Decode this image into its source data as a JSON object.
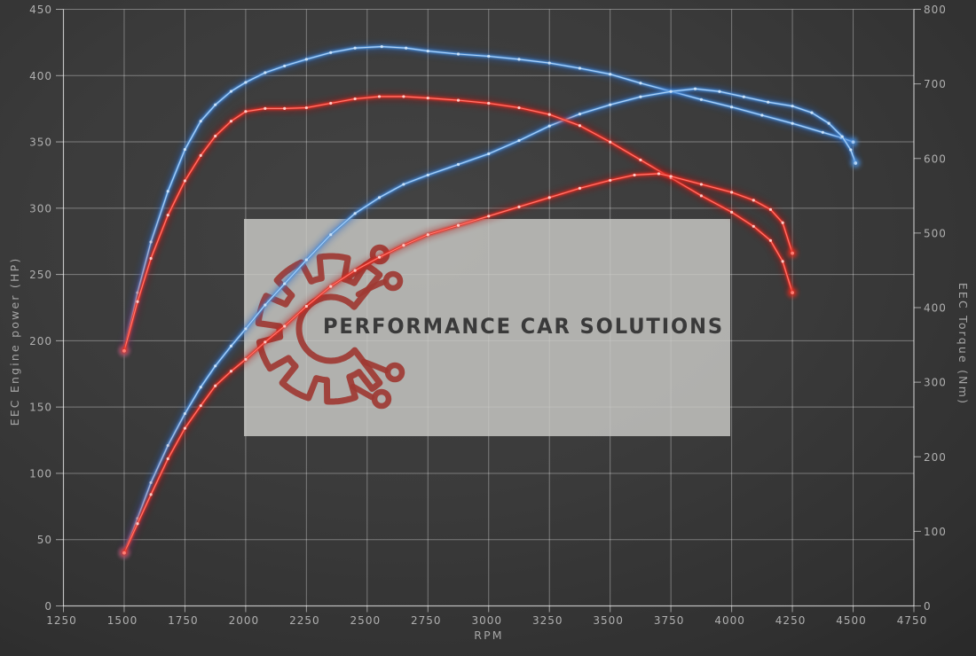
{
  "watermark": {
    "text": "PERFORMANCE CAR SOLUTIONS"
  },
  "colors": {
    "background_center": "#434343",
    "background_edge": "#292929",
    "grid": "rgba(255,255,255,0.34)",
    "axis": "rgba(255,255,255,0.55)",
    "tick_text": "#b0b0b0",
    "watermark_box": "rgba(202,202,199,0.82)",
    "watermark_text": "#3a3a3a",
    "logo_red": "#9e3a33",
    "blue": {
      "glow": "#1f5ec2",
      "mid": "#4e92dc",
      "core": "#b5d6f5",
      "dot": "#cfe6fb"
    },
    "red": {
      "glow": "#a80f0a",
      "mid": "#e62e24",
      "core": "#ff8177",
      "dot": "#ffd4cf"
    }
  },
  "chart_data": {
    "type": "line",
    "title": "",
    "xlabel": "RPM",
    "ylabel_left": "EEC Engine power (HP)",
    "ylabel_right": "EEC Torque (Nm)",
    "grid": true,
    "legend": "none",
    "x_range": [
      1250,
      4750
    ],
    "y_left_range": [
      0,
      450
    ],
    "y_right_range": [
      0,
      800
    ],
    "x_ticks": [
      1250,
      1500,
      1750,
      2000,
      2250,
      2500,
      2750,
      3000,
      3250,
      3500,
      3750,
      4000,
      4250,
      4500,
      4750
    ],
    "y_left_ticks": [
      0,
      50,
      100,
      150,
      200,
      250,
      300,
      350,
      400,
      450
    ],
    "y_right_ticks": [
      0,
      100,
      200,
      300,
      400,
      500,
      600,
      700,
      800
    ],
    "series": [
      {
        "name": "torque-run-blue",
        "axis": "right",
        "unit": "Nm",
        "color_key": "blue",
        "points": [
          [
            1500,
            342
          ],
          [
            1555,
            420
          ],
          [
            1610,
            488
          ],
          [
            1680,
            556
          ],
          [
            1750,
            612
          ],
          [
            1815,
            650
          ],
          [
            1875,
            672
          ],
          [
            1940,
            690
          ],
          [
            2000,
            702
          ],
          [
            2080,
            715
          ],
          [
            2160,
            724
          ],
          [
            2250,
            733
          ],
          [
            2350,
            742
          ],
          [
            2450,
            748
          ],
          [
            2560,
            750
          ],
          [
            2660,
            748
          ],
          [
            2750,
            744
          ],
          [
            2875,
            740
          ],
          [
            3000,
            737
          ],
          [
            3125,
            733
          ],
          [
            3250,
            728
          ],
          [
            3375,
            721
          ],
          [
            3500,
            713
          ],
          [
            3625,
            701
          ],
          [
            3750,
            690
          ],
          [
            3875,
            679
          ],
          [
            4000,
            669
          ],
          [
            4125,
            658
          ],
          [
            4250,
            647
          ],
          [
            4375,
            635
          ],
          [
            4450,
            628
          ],
          [
            4500,
            622
          ]
        ]
      },
      {
        "name": "power-run-blue",
        "axis": "left",
        "unit": "HP",
        "color_key": "blue",
        "points": [
          [
            1500,
            40
          ],
          [
            1555,
            66
          ],
          [
            1610,
            93
          ],
          [
            1680,
            121
          ],
          [
            1750,
            145
          ],
          [
            1815,
            165
          ],
          [
            1875,
            181
          ],
          [
            1940,
            196
          ],
          [
            2000,
            209
          ],
          [
            2080,
            227
          ],
          [
            2160,
            243
          ],
          [
            2250,
            261
          ],
          [
            2350,
            280
          ],
          [
            2450,
            296
          ],
          [
            2550,
            308
          ],
          [
            2650,
            318
          ],
          [
            2750,
            325
          ],
          [
            2875,
            333
          ],
          [
            3000,
            341
          ],
          [
            3125,
            351
          ],
          [
            3250,
            362
          ],
          [
            3375,
            371
          ],
          [
            3500,
            378
          ],
          [
            3625,
            384
          ],
          [
            3750,
            388
          ],
          [
            3850,
            390
          ],
          [
            3950,
            388
          ],
          [
            4050,
            384
          ],
          [
            4150,
            380
          ],
          [
            4250,
            377
          ],
          [
            4330,
            372
          ],
          [
            4400,
            364
          ],
          [
            4455,
            354
          ],
          [
            4490,
            344
          ],
          [
            4510,
            334
          ]
        ]
      },
      {
        "name": "torque-run-red",
        "axis": "right",
        "unit": "Nm",
        "color_key": "red",
        "points": [
          [
            1500,
            342
          ],
          [
            1555,
            408
          ],
          [
            1610,
            466
          ],
          [
            1680,
            524
          ],
          [
            1750,
            570
          ],
          [
            1815,
            604
          ],
          [
            1875,
            630
          ],
          [
            1940,
            650
          ],
          [
            2000,
            663
          ],
          [
            2080,
            667
          ],
          [
            2160,
            667
          ],
          [
            2250,
            668
          ],
          [
            2350,
            674
          ],
          [
            2450,
            680
          ],
          [
            2550,
            683
          ],
          [
            2650,
            683
          ],
          [
            2750,
            681
          ],
          [
            2875,
            678
          ],
          [
            3000,
            674
          ],
          [
            3125,
            668
          ],
          [
            3250,
            659
          ],
          [
            3375,
            644
          ],
          [
            3500,
            622
          ],
          [
            3625,
            598
          ],
          [
            3750,
            574
          ],
          [
            3875,
            550
          ],
          [
            4000,
            528
          ],
          [
            4090,
            509
          ],
          [
            4160,
            490
          ],
          [
            4210,
            462
          ],
          [
            4250,
            420
          ]
        ]
      },
      {
        "name": "power-run-red",
        "axis": "left",
        "unit": "HP",
        "color_key": "red",
        "points": [
          [
            1500,
            40
          ],
          [
            1555,
            62
          ],
          [
            1610,
            84
          ],
          [
            1680,
            111
          ],
          [
            1750,
            134
          ],
          [
            1815,
            151
          ],
          [
            1875,
            166
          ],
          [
            1940,
            177
          ],
          [
            2000,
            186
          ],
          [
            2080,
            199
          ],
          [
            2160,
            211
          ],
          [
            2250,
            226
          ],
          [
            2350,
            241
          ],
          [
            2450,
            253
          ],
          [
            2550,
            263
          ],
          [
            2650,
            272
          ],
          [
            2750,
            280
          ],
          [
            2875,
            287
          ],
          [
            3000,
            294
          ],
          [
            3125,
            301
          ],
          [
            3250,
            308
          ],
          [
            3375,
            315
          ],
          [
            3500,
            321
          ],
          [
            3600,
            325
          ],
          [
            3700,
            326
          ],
          [
            3750,
            324
          ],
          [
            3875,
            318
          ],
          [
            4000,
            312
          ],
          [
            4090,
            306
          ],
          [
            4160,
            299
          ],
          [
            4210,
            289
          ],
          [
            4250,
            266
          ]
        ]
      }
    ]
  }
}
